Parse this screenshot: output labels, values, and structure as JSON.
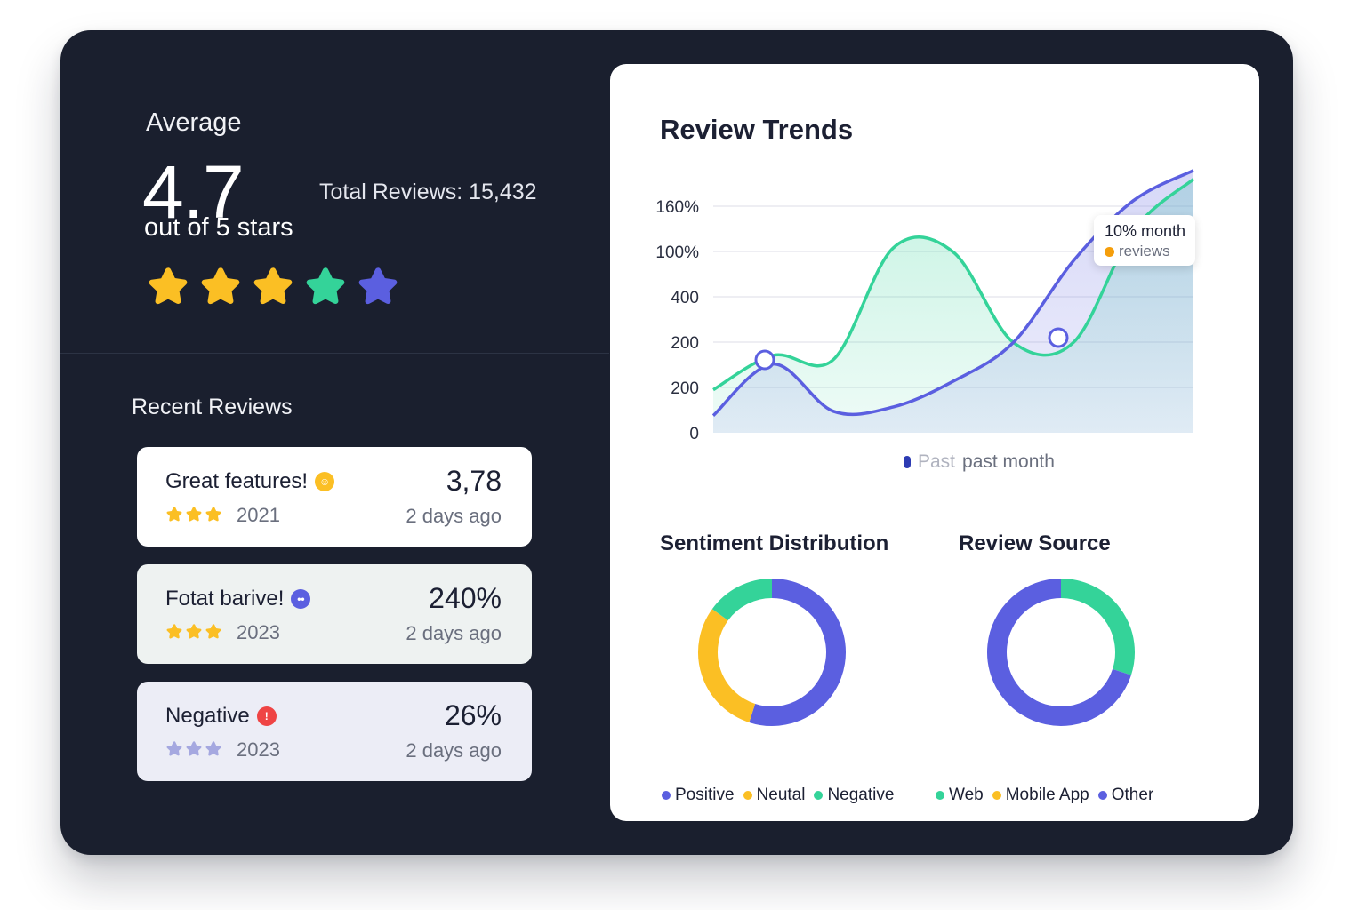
{
  "summary": {
    "average_label": "Average",
    "average_value": "4.7",
    "average_sub": "out of 5 stars",
    "total_reviews": "Total Reviews: 15,432",
    "star_rating": 4.7,
    "star_colors": [
      "#fbbf24",
      "#fbbf24",
      "#fbbf24",
      "#34d399",
      "#5b5fe0"
    ]
  },
  "recent": {
    "title": "Recent Reviews",
    "items": [
      {
        "title": "Great features!",
        "badge_icon": "smile-icon",
        "badge_color": "#fbbf24",
        "stars": 3,
        "star_color": "#fbbf24",
        "year": "2021",
        "value": "3,78",
        "time": "2 days ago"
      },
      {
        "title": "Fotat barive!",
        "badge_icon": "chat-icon",
        "badge_color": "#5b5fe0",
        "stars": 3,
        "star_color": "#fbbf24",
        "year": "2023",
        "value": "240%",
        "time": "2 days ago"
      },
      {
        "title": "Negative",
        "badge_icon": "alert-icon",
        "badge_color": "#ef4444",
        "stars": 3,
        "star_color": "#a5a8e0",
        "year": "2023",
        "value": "26%",
        "time": "2 days ago"
      }
    ]
  },
  "trends": {
    "title": "Review Trends",
    "y_ticks": [
      "160%",
      "100%",
      "400",
      "200",
      "200",
      "0"
    ],
    "tooltip_line1": "10% month",
    "tooltip_line2": "reviews",
    "legend": "past month",
    "legend_partial": "Past"
  },
  "chart_data": [
    {
      "type": "area",
      "title": "Review Trends",
      "y_ticks": [
        "160%",
        "100%",
        "400",
        "200",
        "200",
        "0"
      ],
      "series": [
        {
          "color": "#34d399",
          "values": [
            1.0,
            1.8,
            1.7,
            4.3,
            4.2,
            2.1,
            2.1,
            4.7,
            5.9
          ]
        },
        {
          "color": "#5b5fe0",
          "values": [
            0.4,
            1.6,
            0.5,
            0.6,
            1.2,
            2.1,
            4.0,
            5.4,
            6.1
          ]
        }
      ]
    },
    {
      "type": "pie",
      "title": "Sentiment Distribution",
      "labels": [
        "Positive",
        "Neutal",
        "Negative"
      ],
      "values": [
        55,
        30,
        15
      ],
      "colors": [
        "#5b5fe0",
        "#fbbf24",
        "#34d399"
      ]
    },
    {
      "type": "pie",
      "title": "Review Source",
      "labels": [
        "Web",
        "Mobile App",
        "Other"
      ],
      "values": [
        30,
        0,
        70
      ],
      "colors": [
        "#34d399",
        "#fbbf24",
        "#5b5fe0"
      ]
    }
  ],
  "sentiment": {
    "title": "Sentiment Distribution"
  },
  "source": {
    "title": "Review Source"
  }
}
